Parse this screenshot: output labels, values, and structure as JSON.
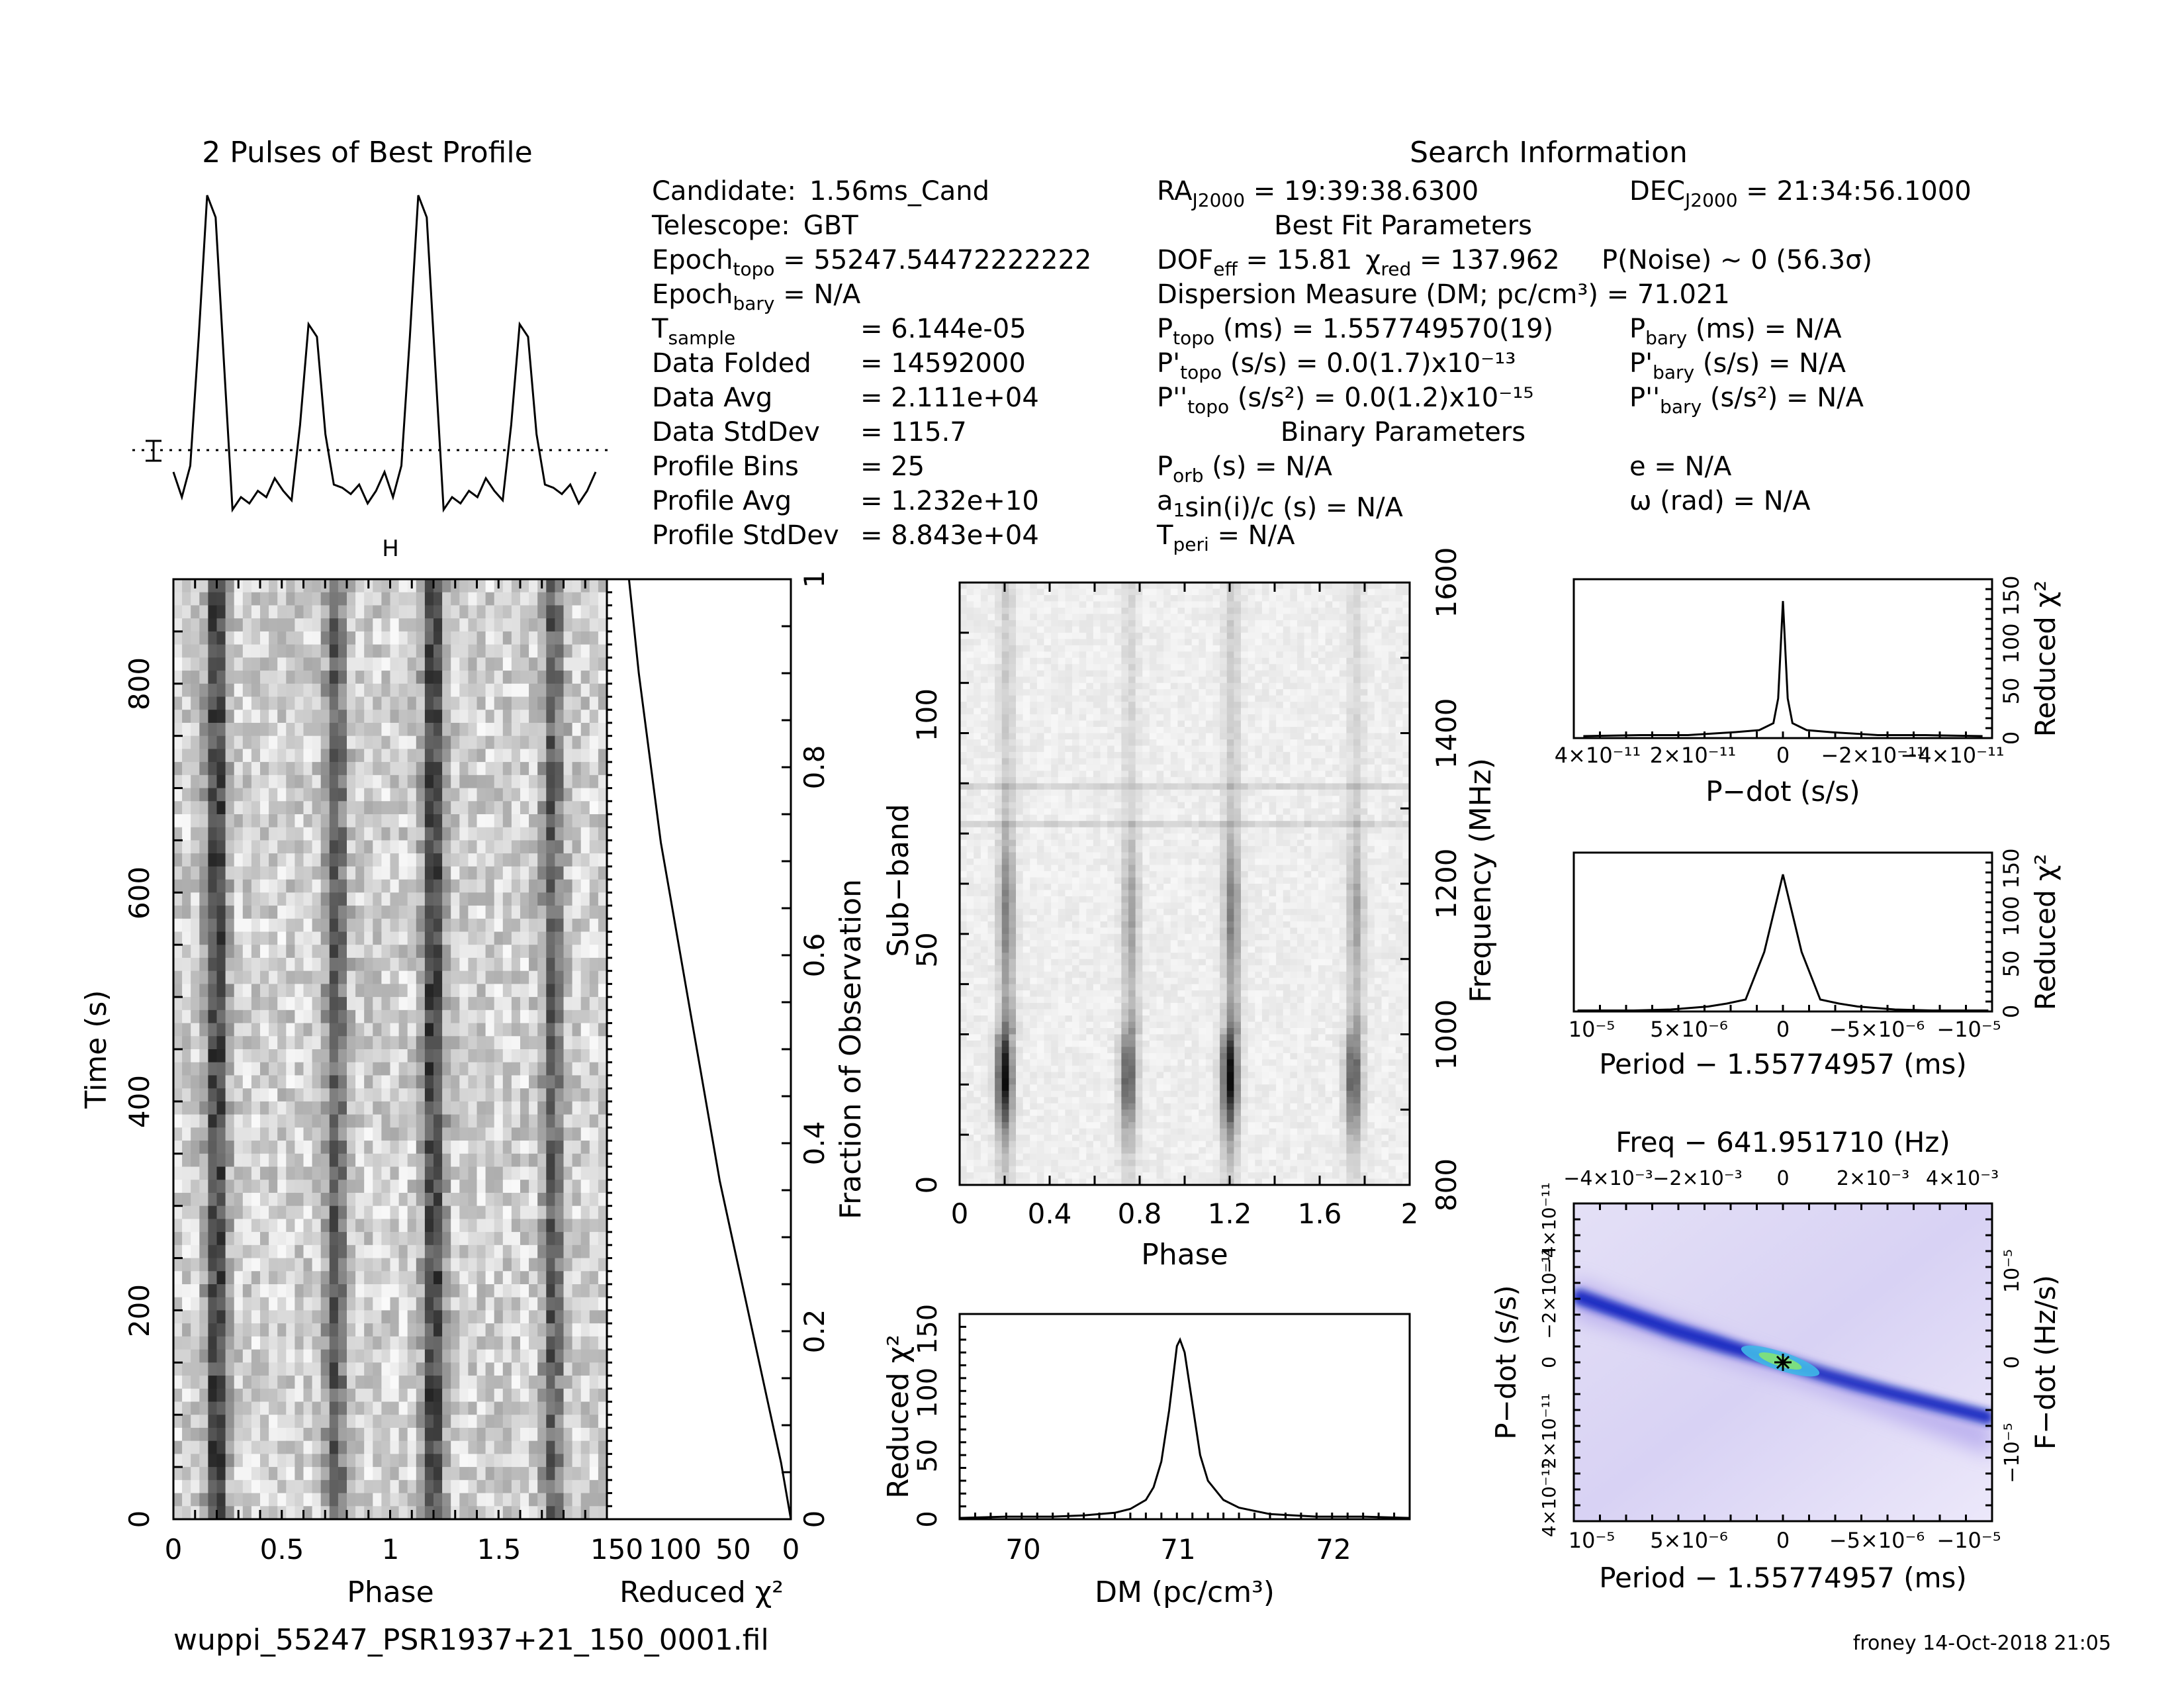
{
  "header": {
    "profile_title": "2 Pulses of Best Profile",
    "search_title": "Search Information",
    "best_fit_title": "Best Fit Parameters",
    "binary_title": "Binary Parameters"
  },
  "candidate_info": [
    {
      "key": "Candidate:",
      "value": "1.56ms_Cand"
    },
    {
      "key": "Telescope:",
      "value": "GBT"
    },
    {
      "key": "Epoch_topo =",
      "value": "55247.54472222222"
    },
    {
      "key": "Epoch_bary =",
      "value": "N/A"
    },
    {
      "key": "T_sample",
      "value": "=   6.144e-05"
    },
    {
      "key": "Data Folded",
      "value": "=   14592000"
    },
    {
      "key": "Data Avg",
      "value": "=   2.111e+04"
    },
    {
      "key": "Data StdDev",
      "value": "=   115.7"
    },
    {
      "key": "Profile Bins",
      "value": "=   25"
    },
    {
      "key": "Profile Avg",
      "value": "=   1.232e+10"
    },
    {
      "key": "Profile StdDev",
      "value": "=   8.843e+04"
    }
  ],
  "search_info": {
    "ra": "= 19:39:38.6300",
    "dec": "= 21:34:56.1000",
    "dof": "= 15.81",
    "chi2_red": "= 137.962",
    "p_noise": "P(Noise) ~ 0    (56.3σ)",
    "dm": "Dispersion Measure (DM; pc/cm³) = 71.021",
    "p_topo": "(ms) =  1.557749570(19)",
    "pd_topo": "(s/s) = 0.0(1.7)x10⁻¹³",
    "pdd_topo": "(s/s²) = 0.0(1.2)x10⁻¹⁵",
    "p_bary": "(ms) = N/A",
    "pd_bary": "(s/s) = N/A",
    "pdd_bary": "(s/s²) = N/A",
    "p_orb": "(s) = N/A",
    "a1sini": "sin(i)/c (s) = N/A",
    "t_peri": "= N/A",
    "e": "e = N/A",
    "omega": "ω (rad) = N/A"
  },
  "footer": {
    "filename": "wuppi_55247_PSR1937+21_150_0001.fil",
    "credit": "froney 14-Oct-2018 21:05"
  },
  "axes": {
    "time": {
      "ylabel": "Time (s)",
      "xlabel": "Phase",
      "xticks": [
        "0",
        "0.5",
        "1",
        "1.5"
      ],
      "yticks": [
        "0",
        "200",
        "400",
        "600",
        "800"
      ]
    },
    "chi_time": {
      "xlabel": "Reduced χ²",
      "xticks": [
        "150",
        "100",
        "50",
        "0"
      ],
      "ylabel": "Fraction of Observation",
      "yticks": [
        "0",
        "0.2",
        "0.4",
        "0.6",
        "0.8",
        "1"
      ]
    },
    "subband": {
      "ylabel": "Sub−band",
      "xlabel": "Phase",
      "xticks": [
        "0",
        "0.4",
        "0.8",
        "1.2",
        "1.6",
        "2"
      ],
      "yticks": [
        "0",
        "50",
        "100"
      ],
      "y2label": "Frequency (MHz)",
      "y2ticks": [
        "800",
        "1000",
        "1200",
        "1400",
        "1600"
      ]
    },
    "dm": {
      "ylabel": "Reduced χ²",
      "xlabel": "DM (pc/cm³)",
      "xticks": [
        "70",
        "71",
        "72"
      ],
      "yticks": [
        "0",
        "50",
        "100",
        "150"
      ]
    },
    "pdot": {
      "xlabel": "P−dot (s/s)",
      "ylabel": "Reduced χ²",
      "xticks": [
        "4×10⁻¹¹",
        "2×10⁻¹¹",
        "0",
        "−2×10⁻¹¹",
        "−4×10⁻¹¹"
      ],
      "yticks": [
        "0",
        "50",
        "100",
        "150"
      ]
    },
    "period": {
      "xlabel": "Period − 1.55774957 (ms)",
      "ylabel": "Reduced χ²",
      "xticks": [
        "10⁻⁵",
        "5×10⁻⁶",
        "0",
        "−5×10⁻⁶",
        "−10⁻⁵"
      ],
      "yticks": [
        "0",
        "50",
        "100",
        "150"
      ]
    },
    "ppdot": {
      "title": "Freq − 641.951710 (Hz)",
      "xlabel": "Period − 1.55774957 (ms)",
      "ylabel": "P−dot (s/s)",
      "y2label": "F−dot (Hz/s)",
      "xticks": [
        "10⁻⁵",
        "5×10⁻⁶",
        "0",
        "−5×10⁻⁶",
        "−10⁻⁵"
      ],
      "topticks": [
        "−4×10⁻³",
        "−2×10⁻³",
        "0",
        "2×10⁻³",
        "4×10⁻³"
      ],
      "yticks": [
        "4×10⁻¹¹",
        "2×10⁻¹¹",
        "0",
        "−2×10⁻¹¹",
        "−4×10⁻¹¹"
      ],
      "y2ticks": [
        "−10⁻⁵",
        "0",
        "10⁻⁵"
      ]
    }
  },
  "chart_data": [
    {
      "type": "line",
      "title": "2 Pulses of Best Profile",
      "x": [
        0,
        0.04,
        0.08,
        0.12,
        0.16,
        0.2,
        0.24,
        0.28,
        0.32,
        0.36,
        0.4,
        0.44,
        0.48,
        0.52,
        0.56,
        0.6,
        0.64,
        0.68,
        0.72,
        0.76,
        0.8,
        0.84,
        0.88,
        0.92,
        0.96,
        1.0,
        1.04,
        1.08,
        1.12,
        1.16,
        1.2,
        1.24,
        1.28,
        1.32,
        1.36,
        1.4,
        1.44,
        1.48,
        1.52,
        1.56,
        1.6,
        1.64,
        1.68,
        1.72,
        1.76,
        1.8,
        1.84,
        1.88,
        1.92,
        1.96,
        2.0
      ],
      "values": [
        0.12,
        0.04,
        0.14,
        0.55,
        1.0,
        0.93,
        0.46,
        0.0,
        0.04,
        0.02,
        0.06,
        0.04,
        0.1,
        0.06,
        0.03,
        0.27,
        0.59,
        0.55,
        0.24,
        0.08,
        0.07,
        0.05,
        0.08,
        0.02,
        0.06,
        0.12,
        0.04,
        0.14,
        0.55,
        1.0,
        0.93,
        0.46,
        0.0,
        0.04,
        0.02,
        0.06,
        0.04,
        0.1,
        0.06,
        0.03,
        0.27,
        0.59,
        0.55,
        0.24,
        0.08,
        0.07,
        0.05,
        0.08,
        0.02,
        0.06,
        0.12
      ]
    },
    {
      "type": "line",
      "xlabel": "Reduced χ²",
      "ylabel": "Fraction of Observation",
      "xlim": [
        150,
        0
      ],
      "ylim": [
        0,
        1
      ],
      "x": [
        0,
        8,
        18,
        28,
        38,
        48,
        58,
        66,
        74,
        82,
        90,
        98,
        106,
        112,
        118,
        124,
        128,
        132
      ],
      "y": [
        0,
        0.06,
        0.12,
        0.18,
        0.24,
        0.3,
        0.36,
        0.42,
        0.48,
        0.54,
        0.6,
        0.66,
        0.72,
        0.78,
        0.84,
        0.9,
        0.95,
        1.0
      ]
    },
    {
      "type": "heatmap",
      "ylabel": "Time (s)",
      "xlabel": "Phase",
      "xlim": [
        0,
        2
      ],
      "ylim": [
        0,
        900
      ],
      "pulse_phases": [
        0.2,
        0.75,
        1.2,
        1.75
      ]
    },
    {
      "type": "heatmap",
      "ylabel": "Sub−band",
      "xlabel": "Phase",
      "xlim": [
        0,
        2
      ],
      "ylim": [
        0,
        128
      ],
      "y2lim": [
        800,
        1600
      ],
      "pulse_phases": [
        0.2,
        0.75,
        1.2,
        1.75
      ]
    },
    {
      "type": "line",
      "xlabel": "DM (pc/cm³)",
      "ylabel": "Reduced χ²",
      "xlim": [
        69.6,
        72.5
      ],
      "ylim": [
        0,
        160
      ],
      "x": [
        69.6,
        69.9,
        70.2,
        70.4,
        70.6,
        70.7,
        70.8,
        70.85,
        70.9,
        70.95,
        71.0,
        71.02,
        71.05,
        71.1,
        71.15,
        71.2,
        71.3,
        71.4,
        71.6,
        71.9,
        72.2,
        72.5
      ],
      "y": [
        1,
        2,
        2,
        3,
        5,
        8,
        15,
        25,
        45,
        85,
        135,
        140,
        130,
        90,
        50,
        30,
        15,
        9,
        4,
        2,
        2,
        1
      ]
    },
    {
      "type": "line",
      "xlabel": "P−dot (s/s)",
      "ylabel": "Reduced χ²",
      "ylim": [
        0,
        160
      ],
      "x": [
        4.2e-11,
        3e-11,
        2e-11,
        1e-11,
        5e-12,
        2e-12,
        1e-12,
        0,
        -1e-12,
        -2e-12,
        -5e-12,
        -1e-11,
        -2e-11,
        -3e-11,
        -4.2e-11
      ],
      "y": [
        2,
        3,
        3,
        6,
        8,
        15,
        40,
        138,
        40,
        15,
        8,
        6,
        3,
        3,
        2
      ]
    },
    {
      "type": "line",
      "xlabel": "Period − 1.55774957 (ms)",
      "ylabel": "Reduced χ²",
      "ylim": [
        0,
        160
      ],
      "x": [
        1.1e-05,
        8e-06,
        6e-06,
        4e-06,
        3e-06,
        2e-06,
        1e-06,
        0,
        -1e-06,
        -2e-06,
        -3e-06,
        -4e-06,
        -6e-06,
        -8e-06,
        -1.1e-05
      ],
      "y": [
        1,
        1,
        2,
        5,
        8,
        12,
        60,
        138,
        60,
        12,
        8,
        5,
        2,
        1,
        1
      ]
    },
    {
      "type": "heatmap",
      "title": "Freq − 641.951710 (Hz)",
      "xlabel": "Period − 1.55774957 (ms)",
      "ylabel": "P−dot (s/s)",
      "y2label": "F−dot (Hz/s)"
    }
  ]
}
